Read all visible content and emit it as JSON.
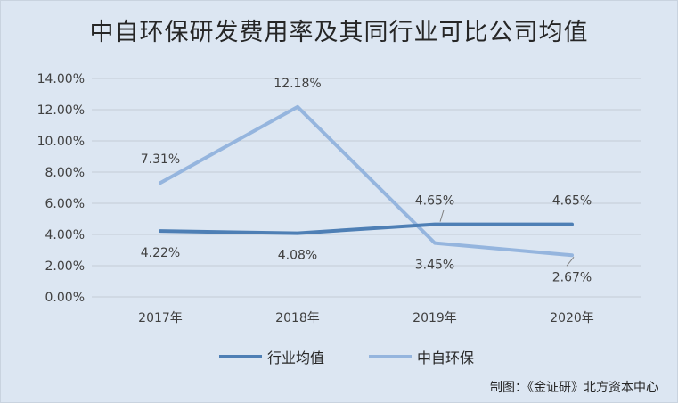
{
  "chart_data": {
    "type": "line",
    "title": "中自环保研发费用率及其同行业可比公司均值",
    "categories": [
      "2017年",
      "2018年",
      "2019年",
      "2020年"
    ],
    "ylim": [
      0,
      14
    ],
    "yticks": [
      "0.00%",
      "2.00%",
      "4.00%",
      "6.00%",
      "8.00%",
      "10.00%",
      "12.00%",
      "14.00%"
    ],
    "grid": true,
    "legend_position": "bottom",
    "series": [
      {
        "name": "行业均值",
        "values": [
          4.22,
          4.08,
          4.65,
          4.65
        ],
        "labels": [
          "4.22%",
          "4.08%",
          "4.65%",
          "4.65%"
        ],
        "color": "#4e7fb5"
      },
      {
        "name": "中自环保",
        "values": [
          7.31,
          12.18,
          3.45,
          2.67
        ],
        "labels": [
          "7.31%",
          "12.18%",
          "3.45%",
          "2.67%"
        ],
        "color": "#95b5de"
      }
    ]
  },
  "source": "制图：《金证研》北方资本中心"
}
